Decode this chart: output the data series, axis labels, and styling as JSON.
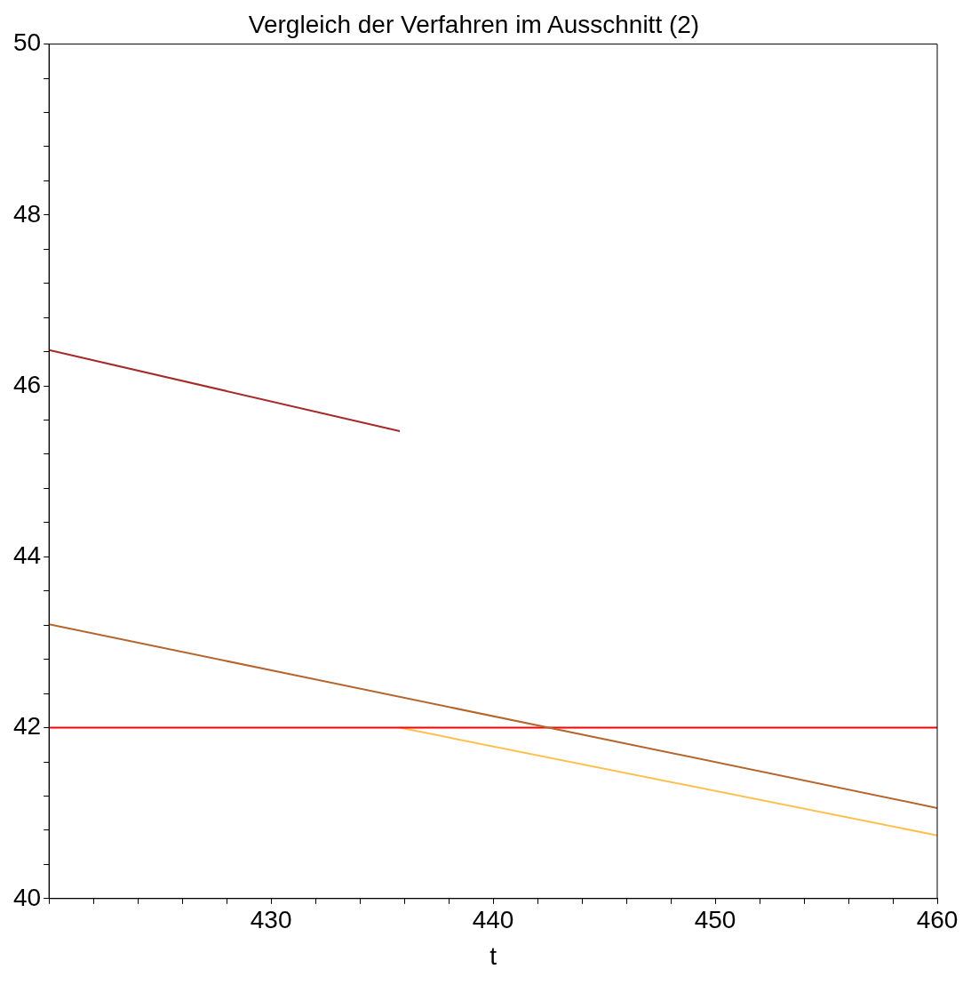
{
  "chart_data": {
    "type": "line",
    "title": "Vergleich der Verfahren im Ausschnitt (2)",
    "xlabel": "t",
    "series": [
      {
        "color": "#a52a2a",
        "x": [
          420,
          435.8
        ],
        "values": [
          46.42,
          45.47
        ]
      },
      {
        "color": "#b5652d",
        "x": [
          420,
          460
        ],
        "values": [
          43.21,
          41.06
        ]
      },
      {
        "color": "#ff0000",
        "x": [
          420,
          460
        ],
        "values": [
          42,
          42
        ]
      },
      {
        "color": "#ffc04d",
        "x": [
          435.8,
          460
        ],
        "values": [
          42,
          40.74
        ]
      }
    ],
    "xlim": [
      420,
      460
    ],
    "ylim": [
      40,
      50
    ],
    "xticks": [
      {
        "value": 420,
        "label": null
      },
      {
        "value": 422,
        "label": null
      },
      {
        "value": 424,
        "label": null
      },
      {
        "value": 426,
        "label": null
      },
      {
        "value": 428,
        "label": null
      },
      430,
      {
        "value": 432,
        "label": null
      },
      {
        "value": 434,
        "label": null
      },
      {
        "value": 436,
        "label": null
      },
      {
        "value": 438,
        "label": null
      },
      440,
      {
        "value": 442,
        "label": null
      },
      {
        "value": 444,
        "label": null
      },
      {
        "value": 446,
        "label": null
      },
      {
        "value": 448,
        "label": null
      },
      450,
      {
        "value": 452,
        "label": null
      },
      {
        "value": 454,
        "label": null
      },
      {
        "value": 456,
        "label": null
      },
      {
        "value": 458,
        "label": null
      },
      460
    ],
    "yticks": [
      40,
      {
        "value": 40.4,
        "label": null
      },
      {
        "value": 40.8,
        "label": null
      },
      {
        "value": 41.2,
        "label": null
      },
      {
        "value": 41.6,
        "label": null
      },
      42,
      {
        "value": 42.4,
        "label": null
      },
      {
        "value": 42.8,
        "label": null
      },
      {
        "value": 43.2,
        "label": null
      },
      {
        "value": 43.6,
        "label": null
      },
      44,
      {
        "value": 44.4,
        "label": null
      },
      {
        "value": 44.8,
        "label": null
      },
      {
        "value": 45.2,
        "label": null
      },
      {
        "value": 45.6,
        "label": null
      },
      46,
      {
        "value": 46.4,
        "label": null
      },
      {
        "value": 46.8,
        "label": null
      },
      {
        "value": 47.2,
        "label": null
      },
      {
        "value": 47.6,
        "label": null
      },
      48,
      {
        "value": 48.4,
        "label": null
      },
      {
        "value": 48.8,
        "label": null
      },
      {
        "value": 49.2,
        "label": null
      },
      {
        "value": 49.6,
        "label": null
      },
      50
    ],
    "grid": false,
    "legend": false,
    "line_style": "solid",
    "marker": "none"
  }
}
